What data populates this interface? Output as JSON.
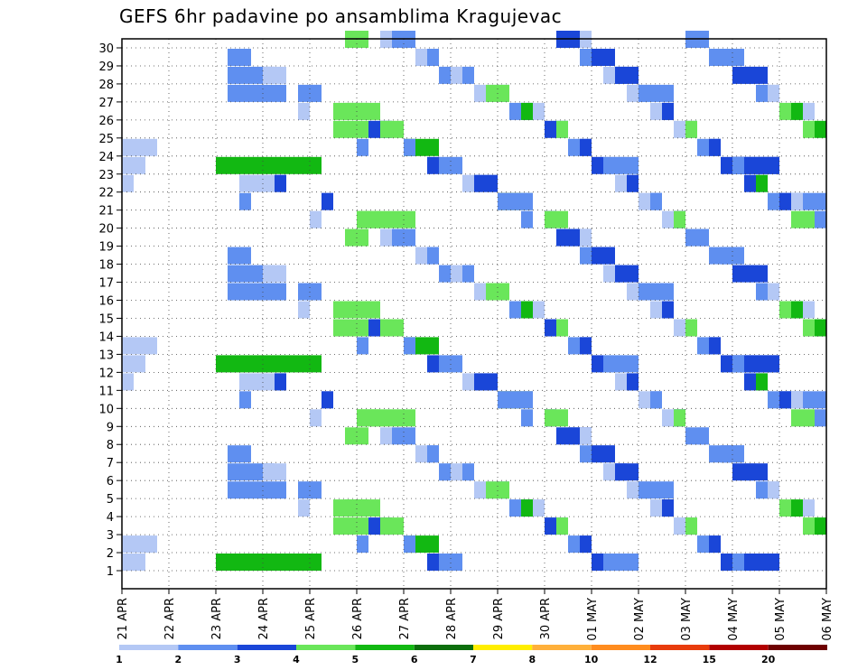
{
  "chart_data": {
    "type": "heatmap",
    "title": "GEFS 6hr padavine po ansamblima Kragujevac",
    "y_ticks": [
      "1",
      "2",
      "3",
      "4",
      "5",
      "6",
      "7",
      "8",
      "9",
      "10",
      "11",
      "12",
      "13",
      "14",
      "15",
      "16",
      "17",
      "18",
      "19",
      "20",
      "21",
      "22",
      "23",
      "24",
      "25",
      "26",
      "27",
      "28",
      "29",
      "30"
    ],
    "x_ticks": [
      "21 APR",
      "22 APR",
      "23 APR",
      "24 APR",
      "25 APR",
      "26 APR",
      "27 APR",
      "28 APR",
      "29 APR",
      "30 APR",
      "01 MAY",
      "02 MAY",
      "03 MAY",
      "04 MAY",
      "05 MAY",
      "06 MAY"
    ],
    "steps_per_day": 4,
    "colorbar": {
      "labels": [
        "1",
        "2",
        "3",
        "4",
        "5",
        "6",
        "7",
        "8",
        "10",
        "12",
        "15",
        "20"
      ],
      "colors": [
        "#b4c8f5",
        "#5f8ff0",
        "#1a46d8",
        "#6ae65a",
        "#12b812",
        "#0c6e0c",
        "#ffee00",
        "#ffb03a",
        "#ff8c1e",
        "#e83c0c",
        "#b20000",
        "#6e0000"
      ]
    },
    "cells": [
      [
        1,
        0,
        1
      ],
      [
        2,
        9,
        5
      ],
      [
        2,
        10,
        1
      ],
      [
        1,
        15,
        1
      ],
      [
        1,
        16,
        1
      ],
      [
        4,
        18,
        3
      ],
      [
        4,
        19,
        2
      ],
      [
        2,
        20,
        1
      ],
      [
        2,
        26,
        1
      ],
      [
        2,
        27,
        1
      ],
      [
        1,
        28,
        1
      ],
      [
        1,
        29,
        2
      ],
      [
        1,
        30,
        2
      ],
      [
        6,
        32,
        3
      ],
      [
        2,
        33,
        2
      ],
      [
        2,
        34,
        1
      ],
      [
        3,
        36,
        1
      ],
      [
        3,
        37,
        3
      ],
      [
        2,
        38,
        2
      ],
      [
        2,
        39,
        1
      ],
      [
        3,
        40,
        1
      ],
      [
        1,
        41,
        1
      ],
      [
        1,
        42,
        1
      ],
      [
        1,
        43,
        1
      ],
      [
        1,
        44,
        1
      ],
      [
        1,
        45,
        1
      ],
      [
        1,
        46,
        2
      ],
      [
        1,
        47,
        2
      ],
      [
        2,
        48,
        1
      ],
      [
        2,
        49,
        1
      ],
      [
        2,
        50,
        3
      ],
      [
        3,
        51,
        5
      ],
      [
        3,
        52,
        1
      ],
      [
        3,
        53,
        1
      ],
      [
        2,
        54,
        1
      ],
      [
        2,
        55,
        5
      ],
      [
        4,
        56,
        1
      ],
      [
        4,
        57,
        1
      ],
      [
        4,
        58,
        1
      ],
      [
        5,
        59,
        4
      ],
      [
        5,
        60,
        2
      ],
      [
        3,
        61,
        1
      ],
      [
        1,
        0,
        2
      ],
      [
        2,
        9,
        4
      ],
      [
        1,
        10,
        4
      ],
      [
        1,
        16,
        1
      ],
      [
        1,
        17,
        1
      ],
      [
        4,
        19,
        3
      ],
      [
        4,
        20,
        5
      ],
      [
        3,
        21,
        2
      ],
      [
        1,
        22,
        1
      ],
      [
        5,
        24,
        3
      ],
      [
        1,
        25,
        1
      ],
      [
        3,
        26,
        1
      ],
      [
        2,
        27,
        1
      ],
      [
        1,
        31,
        1
      ],
      [
        2,
        32,
        1
      ],
      [
        1,
        34,
        1
      ],
      [
        1,
        35,
        1
      ],
      [
        3,
        36,
        1
      ],
      [
        2,
        37,
        1
      ],
      [
        1,
        38,
        2
      ],
      [
        1,
        39,
        1
      ],
      [
        1,
        40,
        2
      ],
      [
        1,
        41,
        2
      ],
      [
        2,
        42,
        1
      ],
      [
        2,
        43,
        1
      ],
      [
        1,
        44,
        1
      ],
      [
        2,
        45,
        1
      ],
      [
        3,
        46,
        1
      ],
      [
        3,
        47,
        1
      ],
      [
        1,
        48,
        1
      ],
      [
        1,
        49,
        1
      ],
      [
        2,
        50,
        1
      ],
      [
        2,
        51,
        1
      ],
      [
        3,
        52,
        4
      ],
      [
        1,
        53,
        1
      ],
      [
        2,
        54,
        1
      ],
      [
        1,
        55,
        1
      ],
      [
        1,
        57,
        1
      ],
      [
        1,
        58,
        1
      ],
      [
        2,
        59,
        1
      ],
      [
        3,
        60,
        1
      ],
      [
        1,
        61,
        1
      ],
      [
        1,
        0,
        3
      ],
      [
        2,
        9,
        2
      ],
      [
        5,
        8,
        9
      ],
      [
        1,
        12,
        2
      ],
      [
        3,
        13,
        1
      ],
      [
        2,
        15,
        2
      ],
      [
        3,
        17,
        1
      ],
      [
        4,
        18,
        3
      ],
      [
        4,
        20,
        2
      ],
      [
        4,
        22,
        2
      ],
      [
        2,
        23,
        2
      ],
      [
        2,
        24,
        1
      ],
      [
        2,
        26,
        1
      ],
      [
        2,
        28,
        1
      ],
      [
        2,
        29,
        1
      ],
      [
        3,
        30,
        2
      ],
      [
        4,
        31,
        2
      ],
      [
        2,
        32,
        3
      ],
      [
        5,
        34,
        1
      ],
      [
        4,
        36,
        2
      ],
      [
        4,
        37,
        1
      ],
      [
        3,
        38,
        1
      ],
      [
        3,
        39,
        1
      ],
      [
        3,
        40,
        2
      ],
      [
        2,
        41,
        3
      ],
      [
        3,
        42,
        2
      ],
      [
        3,
        43,
        1
      ],
      [
        2,
        44,
        3
      ],
      [
        2,
        45,
        1
      ],
      [
        3,
        46,
        1
      ],
      [
        4,
        47,
        1
      ],
      [
        4,
        48,
        1
      ],
      [
        2,
        49,
        1
      ],
      [
        3,
        50,
        1
      ],
      [
        2,
        51,
        2
      ],
      [
        2,
        52,
        1
      ],
      [
        3,
        53,
        2
      ],
      [
        5,
        54,
        1
      ],
      [
        1,
        55,
        1
      ],
      [
        3,
        56,
        1
      ],
      [
        5,
        57,
        1
      ],
      [
        4,
        58,
        1
      ],
      [
        5,
        59,
        1
      ],
      [
        6,
        60,
        1
      ],
      [
        1,
        61,
        1
      ]
    ]
  }
}
